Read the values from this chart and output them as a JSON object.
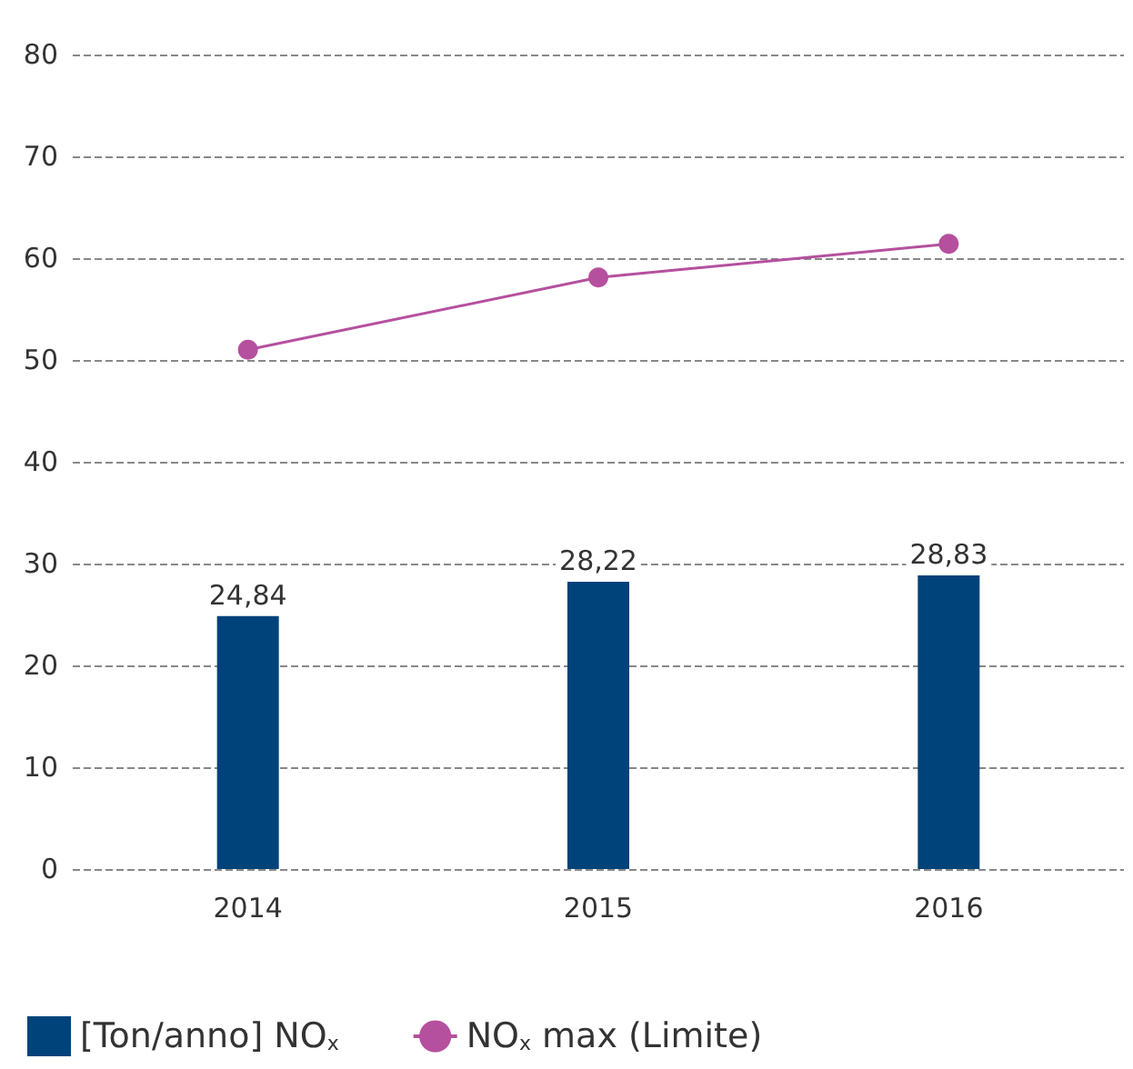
{
  "chart_data": {
    "type": "bar",
    "categories": [
      "2014",
      "2015",
      "2016"
    ],
    "series": [
      {
        "name": "[Ton/anno] NO$_{x}$",
        "color": "#00427a",
        "values": [
          24.84,
          28.22,
          28.83
        ],
        "value_labels": [
          "24,84",
          "28,22",
          "28,83"
        ]
      },
      {
        "name": "NO$_{x}$ max (Limite)",
        "type": "line",
        "color": "#b5509e",
        "values": [
          51.0,
          58.1,
          61.4
        ],
        "marker": "circle"
      }
    ],
    "ylim": [
      0,
      80
    ],
    "yticks": [
      0,
      10,
      20,
      30,
      40,
      50,
      60,
      70,
      80
    ],
    "grid": "y",
    "legend": "bottom"
  }
}
